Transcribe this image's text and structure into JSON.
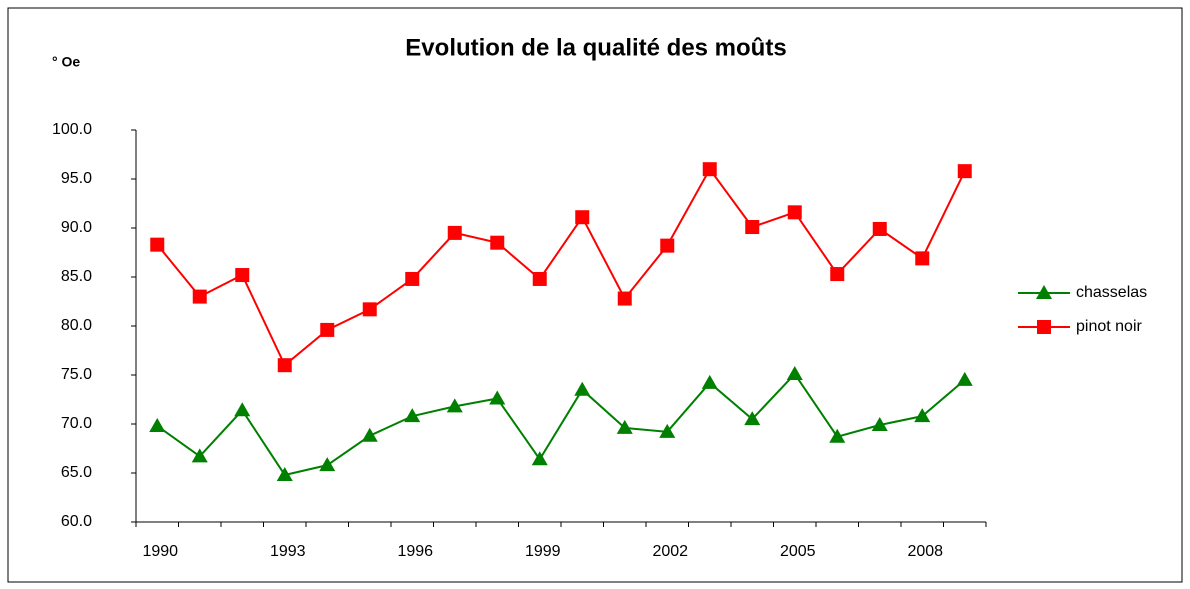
{
  "chart_data": {
    "type": "line",
    "title": "Evolution de la qualité des moûts",
    "y_label": "° Oe",
    "categories": [
      "1990",
      null,
      null,
      "1993",
      null,
      null,
      "1996",
      null,
      null,
      "1999",
      null,
      null,
      "2002",
      null,
      null,
      "2005",
      null,
      null,
      "2008",
      null
    ],
    "series": [
      {
        "name": "chasselas",
        "color": "#008000",
        "marker": "triangle",
        "values": [
          69.8,
          66.7,
          71.4,
          64.8,
          65.8,
          68.8,
          70.8,
          71.8,
          72.6,
          66.4,
          73.5,
          69.6,
          69.2,
          74.2,
          70.5,
          75.1,
          68.7,
          69.9,
          70.8,
          74.5
        ]
      },
      {
        "name": "pinot noir",
        "color": "#ff0000",
        "marker": "square",
        "values": [
          88.3,
          83.0,
          85.2,
          76.0,
          79.6,
          81.7,
          84.8,
          89.5,
          88.5,
          84.8,
          91.1,
          82.8,
          88.2,
          96.0,
          90.1,
          91.6,
          85.3,
          89.9,
          86.9,
          95.8
        ]
      }
    ],
    "ylim": [
      60,
      100
    ],
    "yticks": [
      {
        "value": 60,
        "label": "60.0"
      },
      {
        "value": 65,
        "label": "65.0"
      },
      {
        "value": 70,
        "label": "70.0"
      },
      {
        "value": 75,
        "label": "75.0"
      },
      {
        "value": 80,
        "label": "80.0"
      },
      {
        "value": 85,
        "label": "85.0"
      },
      {
        "value": 90,
        "label": "90.0"
      },
      {
        "value": 95,
        "label": "95.0"
      },
      {
        "value": 100,
        "label": "100.0"
      }
    ],
    "grid": false,
    "legend": "right"
  }
}
